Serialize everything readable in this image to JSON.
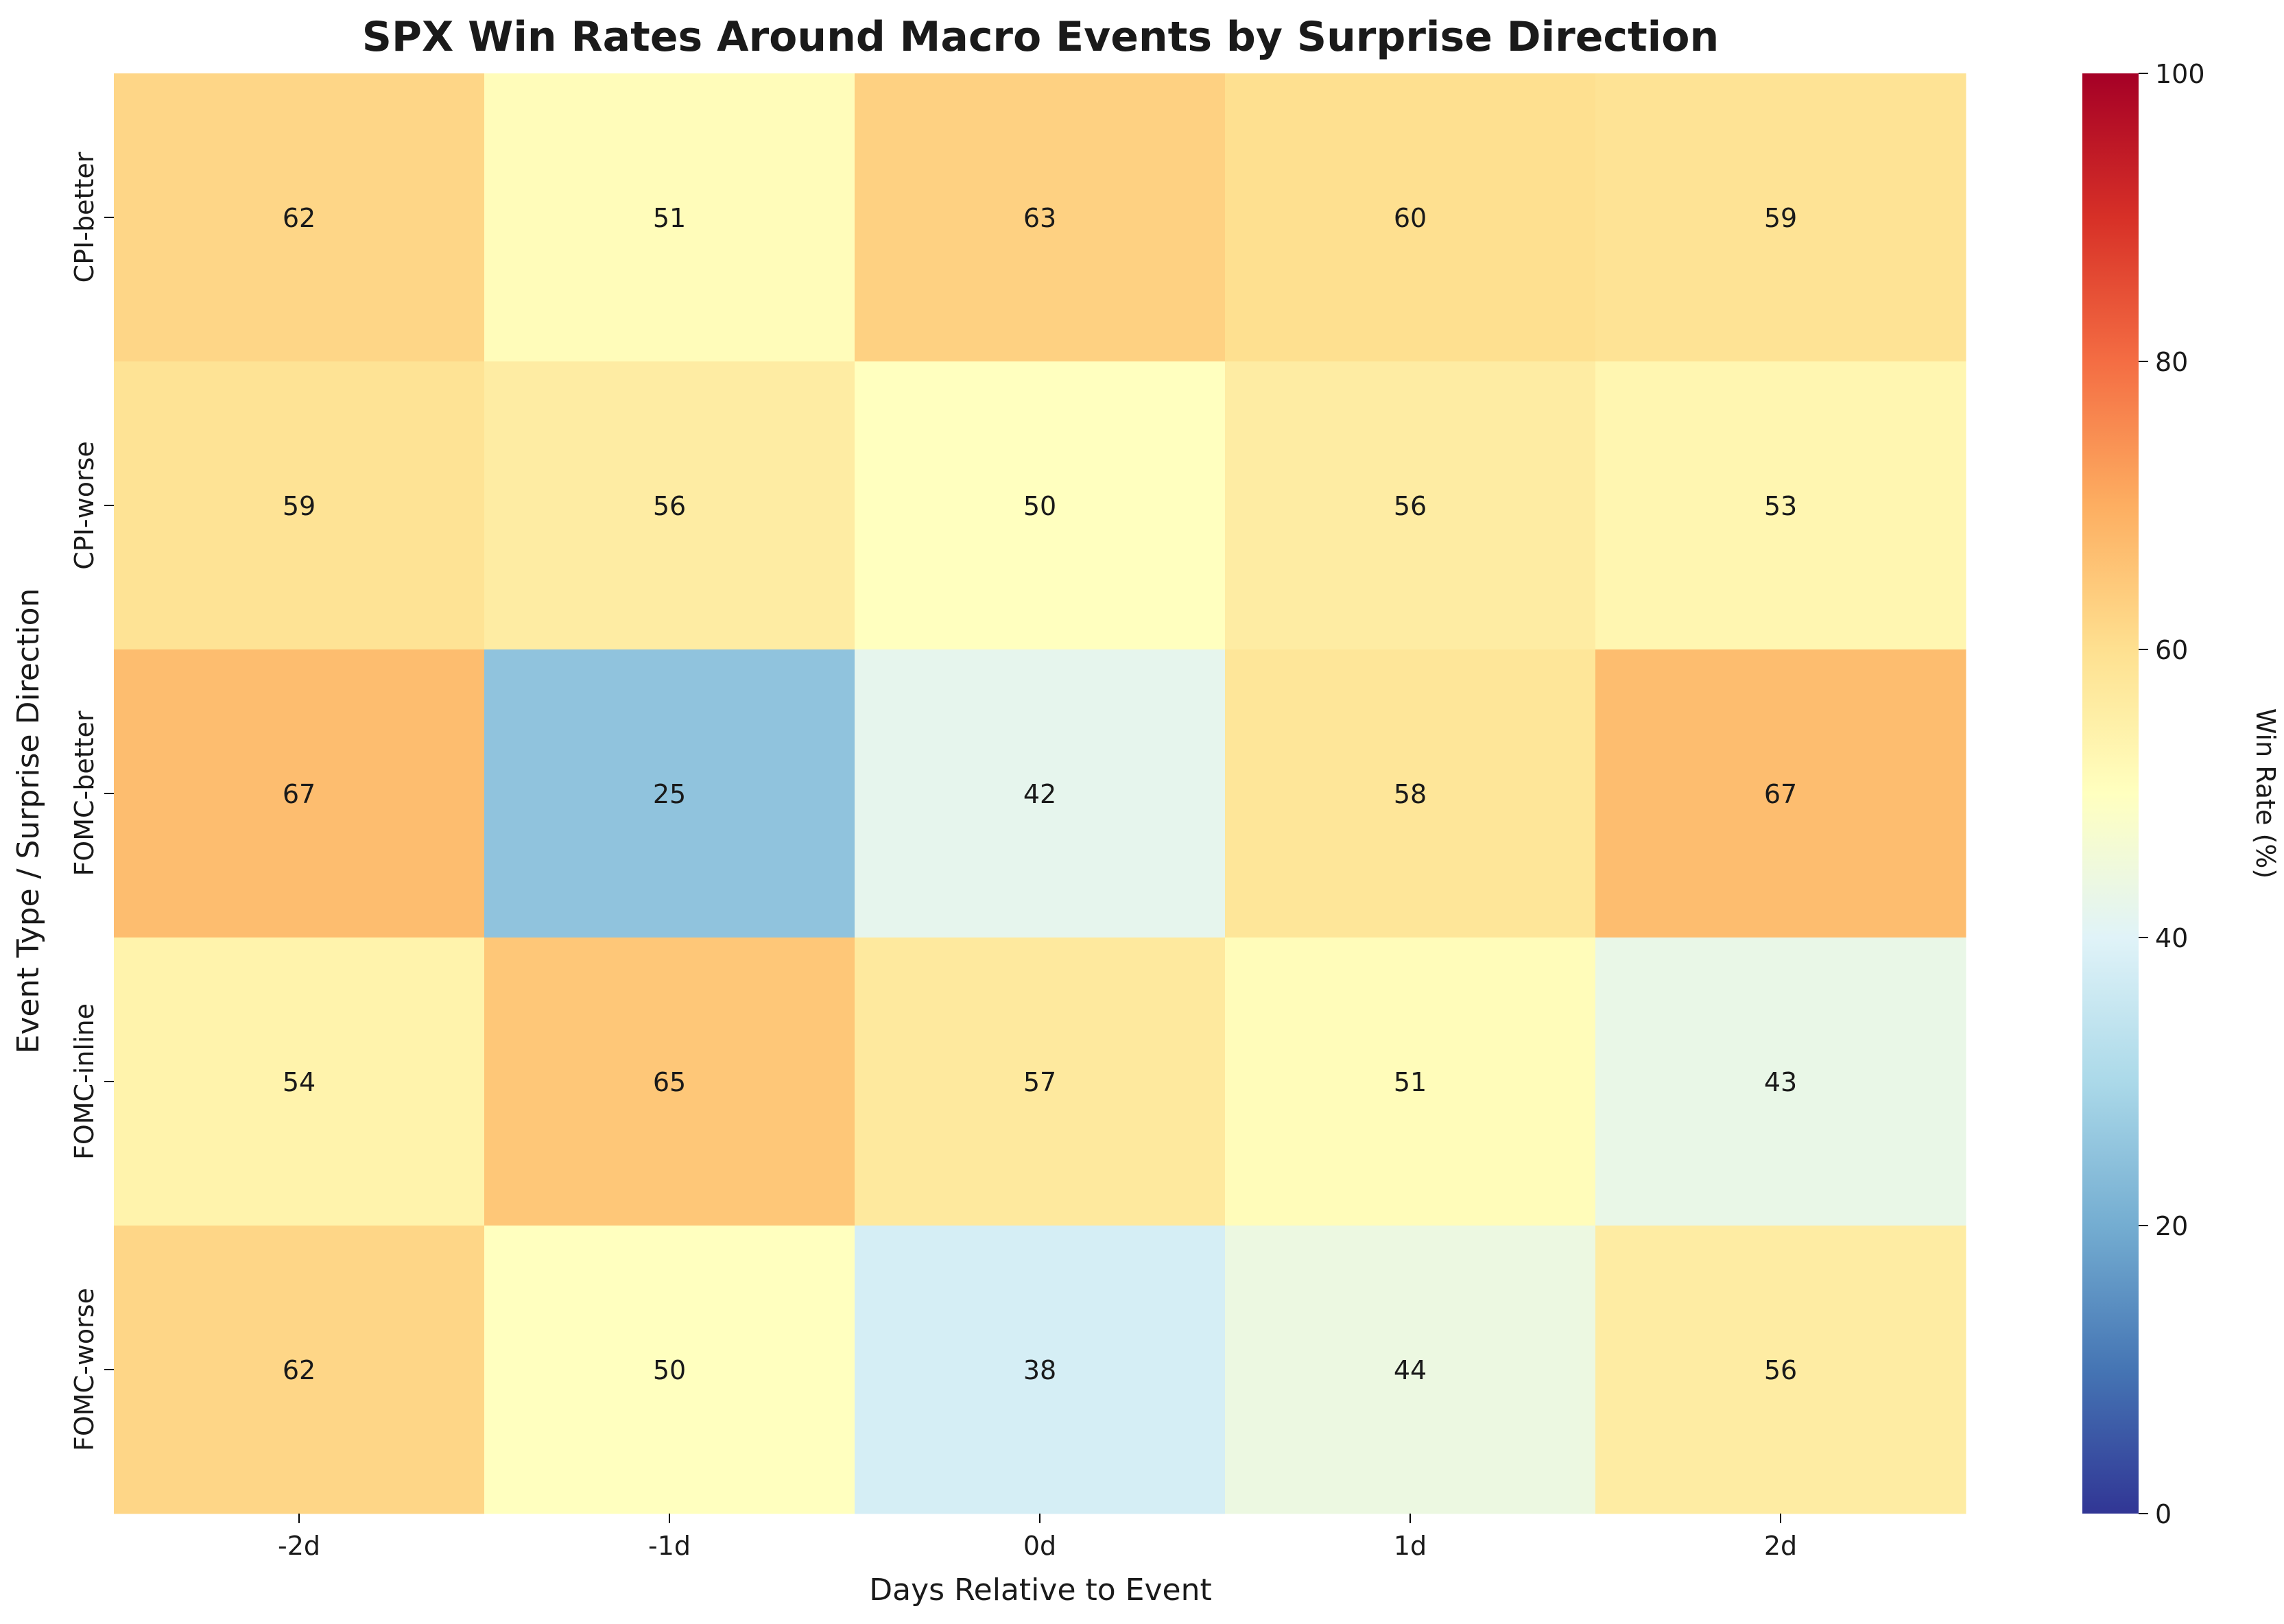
{
  "chart_data": {
    "type": "heatmap",
    "title": "SPX Win Rates Around Macro Events by Surprise Direction",
    "xlabel": "Days Relative to Event",
    "ylabel": "Event Type / Surprise Direction",
    "columns": [
      "-2d",
      "-1d",
      "0d",
      "1d",
      "2d"
    ],
    "rows": [
      "CPI-better",
      "CPI-worse",
      "FOMC-better",
      "FOMC-inline",
      "FOMC-worse"
    ],
    "values": [
      [
        62,
        51,
        63,
        60,
        59
      ],
      [
        59,
        56,
        50,
        56,
        53
      ],
      [
        67,
        25,
        42,
        58,
        67
      ],
      [
        54,
        65,
        57,
        51,
        43
      ],
      [
        62,
        50,
        38,
        44,
        56
      ]
    ],
    "colorbar": {
      "label": "Win Rate (%)",
      "min": 0,
      "max": 100,
      "ticks": [
        0,
        20,
        40,
        60,
        80,
        100
      ],
      "colormap": "RdYlBu_r"
    }
  }
}
